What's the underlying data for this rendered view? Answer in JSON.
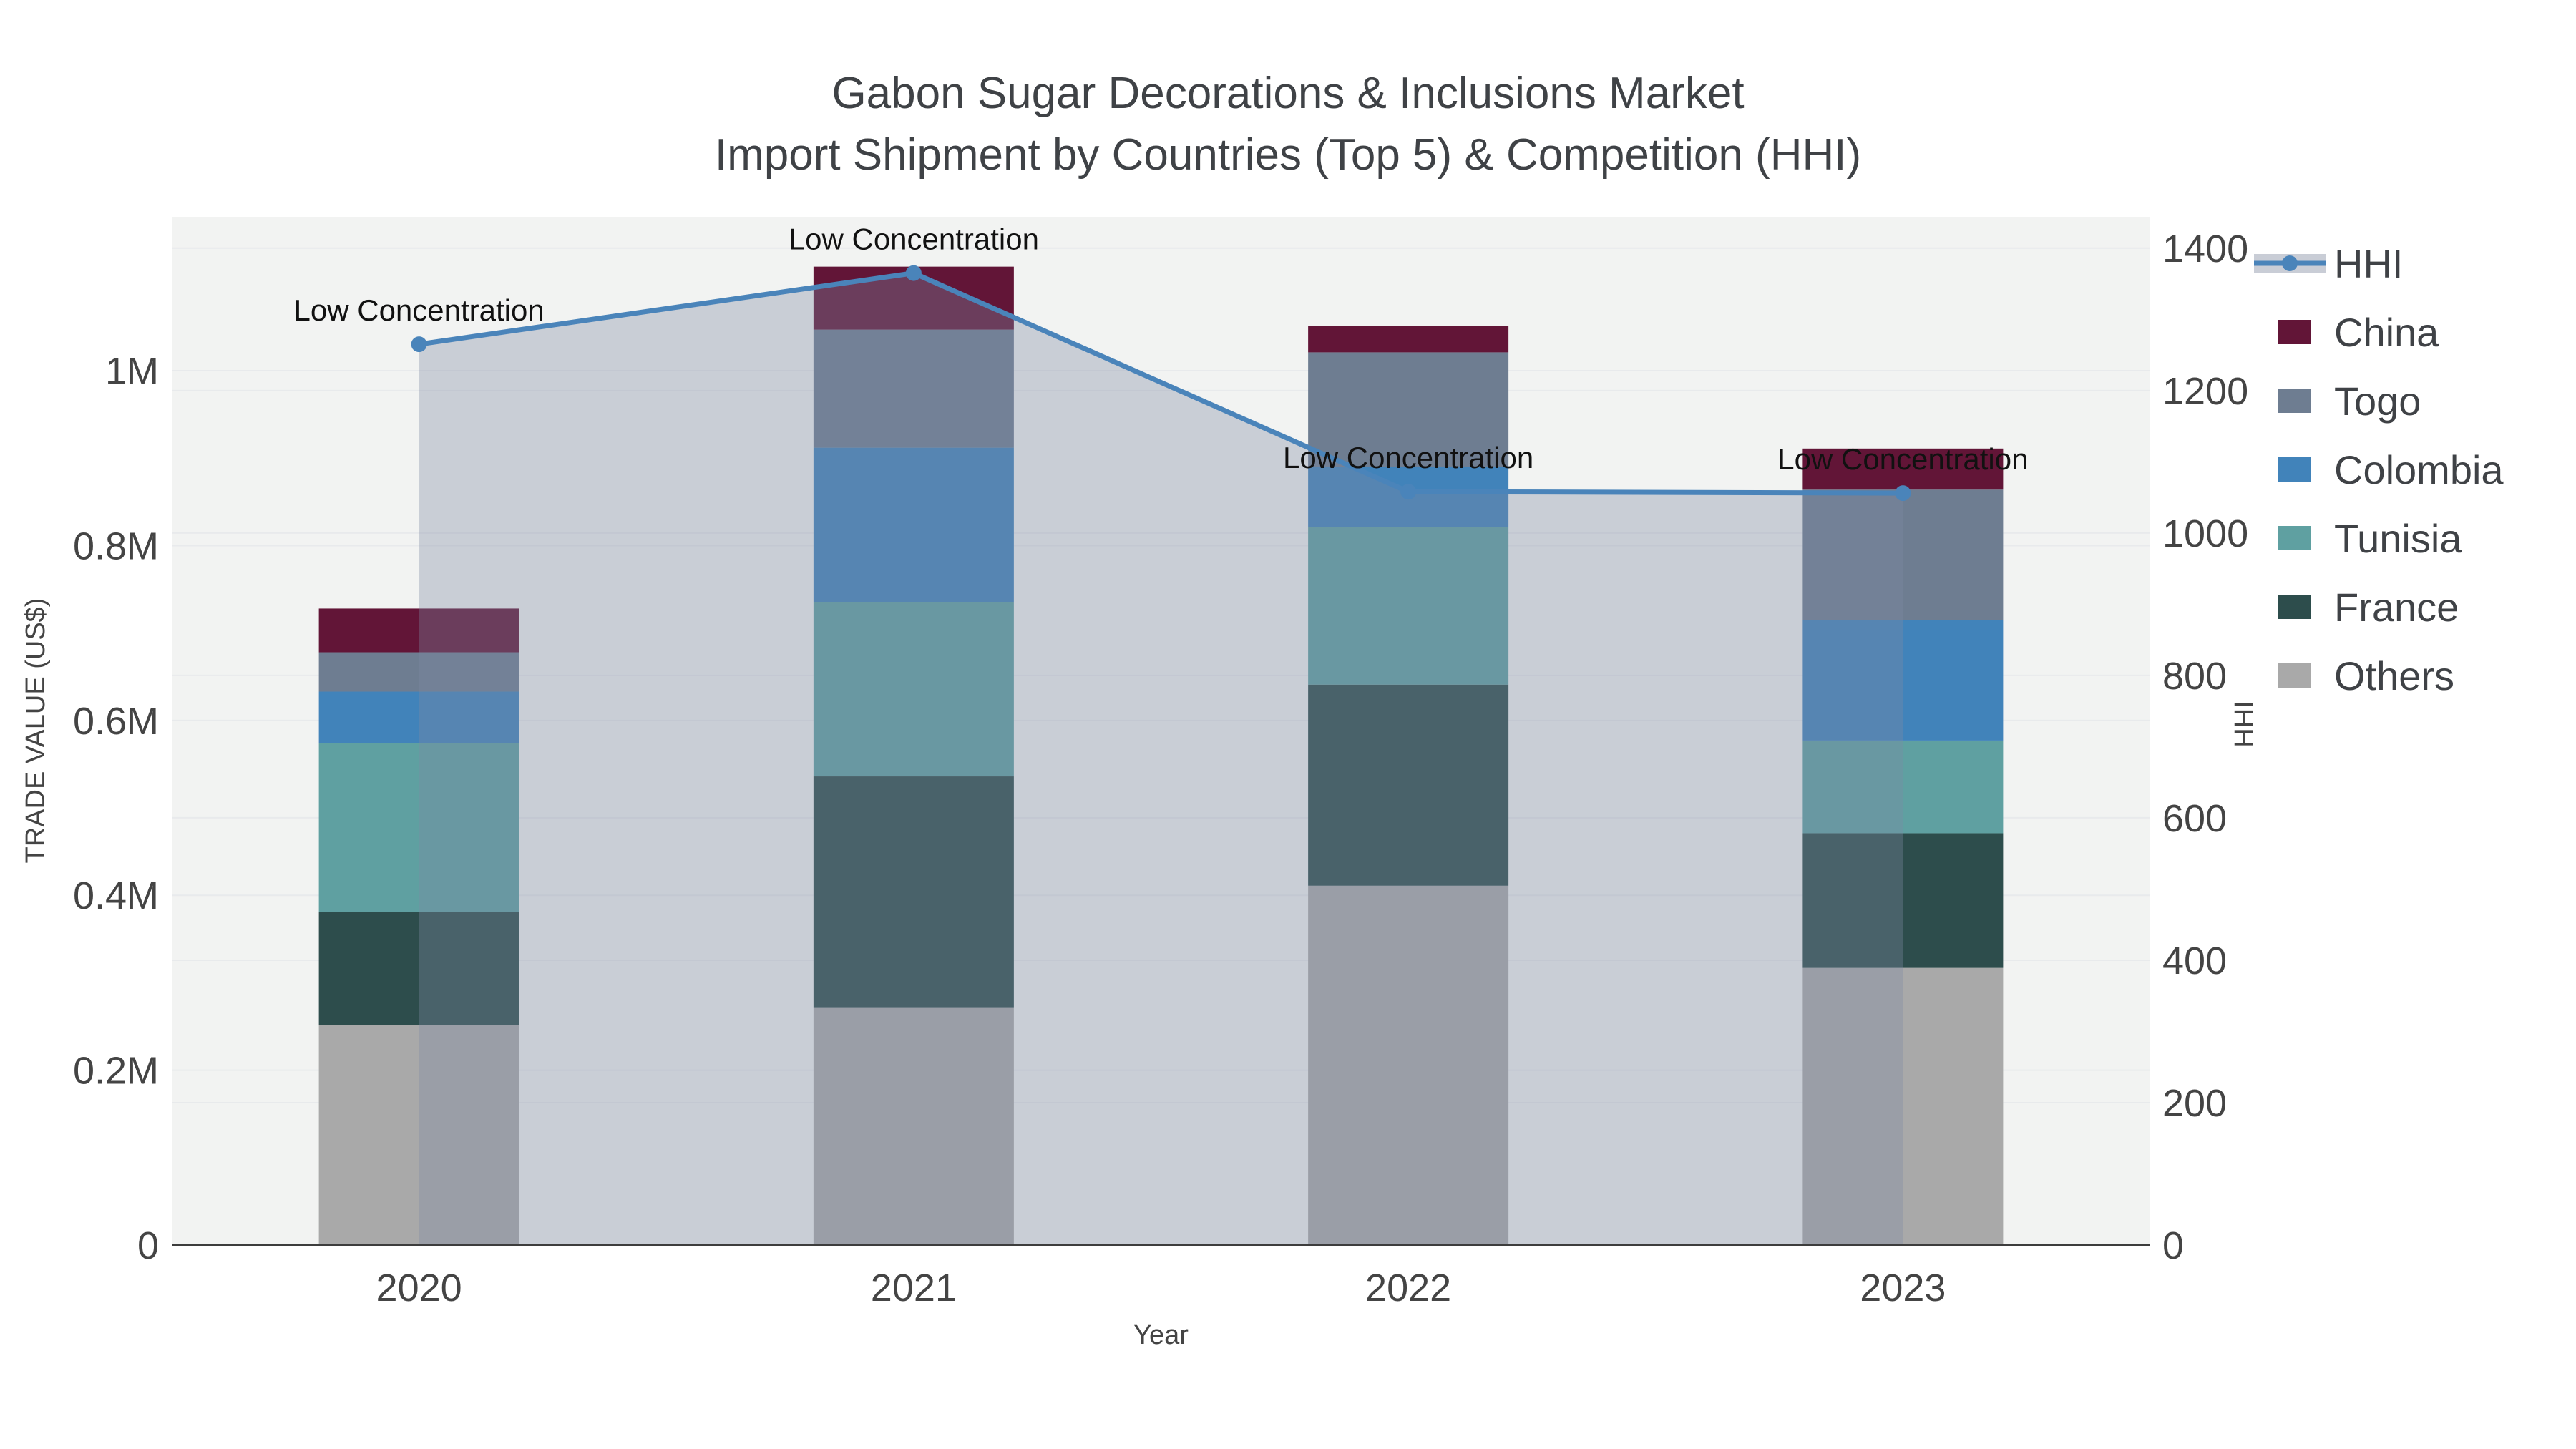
{
  "title": {
    "line1": "Gabon Sugar Decorations & Inclusions Market",
    "line2": "Import Shipment by Countries (Top 5) & Competition (HHI)"
  },
  "axes": {
    "x_title": "Year",
    "y_left_title": "TRADE VALUE (US$)",
    "y_right_title": "HHI"
  },
  "legend": {
    "items": [
      {
        "label": "HHI",
        "type": "line",
        "color": "#4a84ba"
      },
      {
        "label": "China",
        "type": "swatch",
        "color": "#621537"
      },
      {
        "label": "Togo",
        "type": "swatch",
        "color": "#6e7d91"
      },
      {
        "label": "Colombia",
        "type": "swatch",
        "color": "#4183ba"
      },
      {
        "label": "Tunisia",
        "type": "swatch",
        "color": "#5fa0a1"
      },
      {
        "label": "France",
        "type": "swatch",
        "color": "#2d4d4c"
      },
      {
        "label": "Others",
        "type": "swatch",
        "color": "#a9a9a9"
      }
    ]
  },
  "chart_data": {
    "type": "bar+line",
    "title": "Gabon Sugar Decorations & Inclusions Market — Import Shipment by Countries (Top 5) & Competition (HHI)",
    "xlabel": "Year",
    "ylabel": "TRADE VALUE (US$)",
    "y2label": "HHI",
    "categories": [
      "2020",
      "2021",
      "2022",
      "2023"
    ],
    "series": [
      {
        "name": "Others",
        "color": "#a9a9a9",
        "values": [
          252000,
          272000,
          411000,
          317000
        ]
      },
      {
        "name": "France",
        "color": "#2d4d4c",
        "values": [
          129000,
          264000,
          230000,
          154000
        ]
      },
      {
        "name": "Tunisia",
        "color": "#5fa0a1",
        "values": [
          193000,
          199000,
          180000,
          106000
        ]
      },
      {
        "name": "Colombia",
        "color": "#4183ba",
        "values": [
          59000,
          177000,
          69000,
          138000
        ]
      },
      {
        "name": "Togo",
        "color": "#6e7d91",
        "values": [
          45000,
          135000,
          131000,
          149000
        ]
      },
      {
        "name": "China",
        "color": "#621537",
        "values": [
          50000,
          72000,
          30000,
          47000
        ]
      }
    ],
    "line_series": {
      "name": "HHI",
      "axis": "right",
      "color": "#4a84ba",
      "fill_color": "rgba(125,137,162,0.35)",
      "values": [
        1265,
        1365,
        1058,
        1056
      ],
      "annotations": [
        "Low Concentration",
        "Low Concentration",
        "Low Concentration",
        "Low Concentration"
      ]
    },
    "ylim": [
      0,
      1176000
    ],
    "y2lim": [
      0,
      1444
    ],
    "y_ticks": [
      {
        "v": 0,
        "label": "0"
      },
      {
        "v": 200000,
        "label": "0.2M"
      },
      {
        "v": 400000,
        "label": "0.4M"
      },
      {
        "v": 600000,
        "label": "0.6M"
      },
      {
        "v": 800000,
        "label": "0.8M"
      },
      {
        "v": 1000000,
        "label": "1M"
      }
    ],
    "y2_ticks": [
      {
        "v": 0,
        "label": "0"
      },
      {
        "v": 200,
        "label": "200"
      },
      {
        "v": 400,
        "label": "400"
      },
      {
        "v": 600,
        "label": "600"
      },
      {
        "v": 800,
        "label": "800"
      },
      {
        "v": 1000,
        "label": "1000"
      },
      {
        "v": 1200,
        "label": "1200"
      },
      {
        "v": 1400,
        "label": "1400"
      }
    ],
    "grid": true,
    "legend_position": "right",
    "plot_bg": "#f2f3f2",
    "grid_color": "#e8eaec",
    "axis_line_color": "#3d3d3d",
    "tick_color": "#444444",
    "annotation_color": "#111111"
  }
}
